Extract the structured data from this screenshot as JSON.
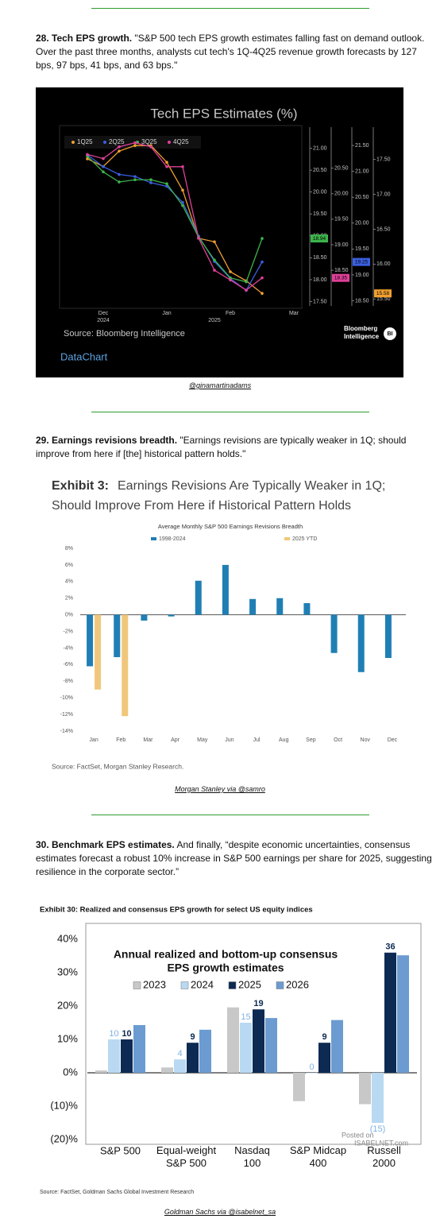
{
  "sections": [
    {
      "lead": "28. Tech EPS growth.",
      "text": "\"S&P 500 tech EPS growth estimates falling fast on demand outlook. Over the past three months, analysts cut tech's 1Q-4Q25 revenue growth forecasts by 127 bps, 97 bps, 41 bps, and 63 bps.\"",
      "credit": "@ginamartinadams"
    },
    {
      "lead": "29. Earnings revisions breadth.",
      "text": "\"Earnings revisions are typically weaker in 1Q; should improve from here if [the] historical pattern holds.\"",
      "credit": "Morgan Stanley via @samro"
    },
    {
      "lead": "30. Benchmark EPS estimates.",
      "text": "And finally, “despite economic uncertainties, consensus estimates forecast a robust 10% increase in S&P 500 earnings per share for 2025, suggesting resilience in the corporate sector.”",
      "credit": "Goldman Sachs via @isabelnet_sa"
    }
  ],
  "chart_data": [
    {
      "type": "line",
      "title": "Tech EPS Estimates (%)",
      "categories": [
        null,
        "Dec",
        null,
        null,
        null,
        "Jan",
        null,
        null,
        null,
        "Feb",
        null,
        null,
        null,
        "Mar"
      ],
      "x_sublabels": [
        null,
        "2024",
        null,
        null,
        null,
        null,
        null,
        null,
        "2025",
        null,
        null,
        null,
        null,
        null
      ],
      "series": [
        {
          "name": "1Q25",
          "color": "#f0a030",
          "values": [
            17.51,
            17.4,
            17.62,
            17.7,
            17.7,
            17.46,
            17.06,
            16.37,
            16.32,
            15.89,
            15.76,
            15.58,
            null,
            null
          ],
          "ylim": [
            15.4,
            17.85
          ],
          "yticks": [
            {
              "value": 15.5,
              "label": "15.50"
            },
            {
              "value": 16,
              "label": "16.00"
            },
            {
              "value": 16.5,
              "label": "16.50"
            },
            {
              "value": 17,
              "label": "17.00"
            },
            {
              "value": 17.5,
              "label": "17.50"
            }
          ]
        },
        {
          "name": "2Q25",
          "color": "#3a5fe0",
          "values": [
            21.32,
            21.09,
            20.94,
            20.9,
            20.78,
            20.71,
            20.4,
            19.75,
            19.26,
            18.93,
            18.7,
            19.25,
            null,
            null
          ],
          "ylim": [
            18.4,
            21.7
          ],
          "yticks": [
            {
              "value": 18.5,
              "label": "18.50"
            },
            {
              "value": 19,
              "label": "19.00"
            },
            {
              "value": 19.5,
              "label": "19.50"
            },
            {
              "value": 20,
              "label": "20.00"
            },
            {
              "value": 20.5,
              "label": "20.50"
            },
            {
              "value": 21,
              "label": "21.00"
            },
            {
              "value": 21.5,
              "label": "21.50"
            }
          ]
        },
        {
          "name": "3Q25",
          "color": "#3cb44b",
          "values": [
            20.82,
            20.46,
            20.23,
            20.28,
            20.28,
            20.19,
            19.69,
            18.97,
            18.45,
            18.04,
            17.95,
            18.94,
            null,
            null
          ],
          "ylim": [
            17.4,
            21.3
          ],
          "yticks": [
            {
              "value": 17.5,
              "label": "17.50"
            },
            {
              "value": 18,
              "label": "18.00"
            },
            {
              "value": 18.5,
              "label": "18.50"
            },
            {
              "value": 19,
              "label": "19.00"
            },
            {
              "value": 19.5,
              "label": "19.50"
            },
            {
              "value": 20,
              "label": "20.00"
            },
            {
              "value": 20.5,
              "label": "20.50"
            },
            {
              "value": 21,
              "label": "21.00"
            }
          ]
        },
        {
          "name": "4Q25",
          "color": "#e0409a",
          "values": [
            20.77,
            20.69,
            20.92,
            21.0,
            20.92,
            20.53,
            20.53,
            19.13,
            18.5,
            18.31,
            18.11,
            18.35,
            null,
            null
          ],
          "ylim": [
            17.8,
            21.15
          ],
          "yticks": [
            {
              "value": 18.5,
              "label": "18.50"
            },
            {
              "value": 19,
              "label": "19.00"
            },
            {
              "value": 19.5,
              "label": "19.50"
            },
            {
              "value": 20,
              "label": "20.00"
            },
            {
              "value": 20.5,
              "label": "20.50"
            }
          ]
        }
      ],
      "source": "Source: Bloomberg Intelligence",
      "brand": [
        "Bloomberg",
        "Intelligence"
      ],
      "badge": "BI",
      "footer": "DataChart"
    },
    {
      "type": "bar",
      "title_lead": "Exhibit 3:",
      "title": [
        "Earnings Revisions Are Typically Weaker in 1Q;",
        "Should Improve From Here if Historical Pattern Holds"
      ],
      "subtitle": "Average Monthly S&P 500 Earnings Revisions Breadth",
      "categories": [
        "Jan",
        "Feb",
        "Mar",
        "Apr",
        "May",
        "Jun",
        "Jul",
        "Aug",
        "Sep",
        "Oct",
        "Nov",
        "Dec"
      ],
      "series": [
        {
          "name": "1998-2024",
          "color": "#1f7fb4",
          "values": [
            -6.2,
            -5.1,
            -0.7,
            -0.2,
            4.1,
            6.0,
            1.9,
            2.0,
            1.4,
            -4.6,
            -6.9,
            -5.2
          ]
        },
        {
          "name": "2025 YTD",
          "color": "#f0c77a",
          "values": [
            -9.0,
            -12.2,
            null,
            null,
            null,
            null,
            null,
            null,
            null,
            null,
            null,
            null
          ]
        }
      ],
      "ylim": [
        -14,
        8
      ],
      "yticks": [
        {
          "value": -14,
          "label": "-14%"
        },
        {
          "value": -12,
          "label": "-12%"
        },
        {
          "value": -10,
          "label": "-10%"
        },
        {
          "value": -8,
          "label": "-8%"
        },
        {
          "value": -6,
          "label": "-6%"
        },
        {
          "value": -4,
          "label": "-4%"
        },
        {
          "value": -2,
          "label": "-2%"
        },
        {
          "value": 0,
          "label": "0%"
        },
        {
          "value": 2,
          "label": "2%"
        },
        {
          "value": 4,
          "label": "4%"
        },
        {
          "value": 6,
          "label": "6%"
        },
        {
          "value": 8,
          "label": "8%"
        }
      ],
      "source": "Source: FactSet, Morgan Stanley Research."
    },
    {
      "type": "bar",
      "figure_title": "Exhibit 30: Realized and consensus EPS growth for select US equity indices",
      "title": [
        "Annual realized and bottom-up consensus",
        "EPS growth estimates"
      ],
      "categories": [
        "S&P 500",
        "Equal-weight\nS&P 500",
        "Nasdaq\n100",
        "S&P Midcap\n400",
        "Russell\n2000"
      ],
      "series": [
        {
          "name": "2023",
          "color": "#c8c8c8",
          "values": [
            0.7,
            1.6,
            19.6,
            -8.5,
            -9.4
          ]
        },
        {
          "name": "2024",
          "color": "#b9d9f2",
          "values": [
            10,
            4,
            15,
            0,
            -15
          ],
          "value_labels": [
            "10",
            "4",
            "15",
            "0",
            "(15)"
          ]
        },
        {
          "name": "2025",
          "color": "#0d2a52",
          "values": [
            10,
            9,
            19,
            9,
            36
          ],
          "value_labels": [
            "10",
            "9",
            "19",
            "9",
            "36"
          ]
        },
        {
          "name": "2026",
          "color": "#6b9bd1",
          "values": [
            14.3,
            12.9,
            16.4,
            15.8,
            35.2
          ]
        }
      ],
      "ylim": [
        -20,
        40
      ],
      "yticks": [
        {
          "value": -20,
          "label": "(20)%"
        },
        {
          "value": -10,
          "label": "(10)%"
        },
        {
          "value": 0,
          "label": "0%"
        },
        {
          "value": 10,
          "label": "10%"
        },
        {
          "value": 20,
          "label": "20%"
        },
        {
          "value": 30,
          "label": "30%"
        },
        {
          "value": 40,
          "label": "40%"
        }
      ],
      "watermark": [
        "Posted on",
        "ISABELNET.com"
      ],
      "source": "Source: FactSet, Goldman Sachs Global Investment Research"
    }
  ]
}
